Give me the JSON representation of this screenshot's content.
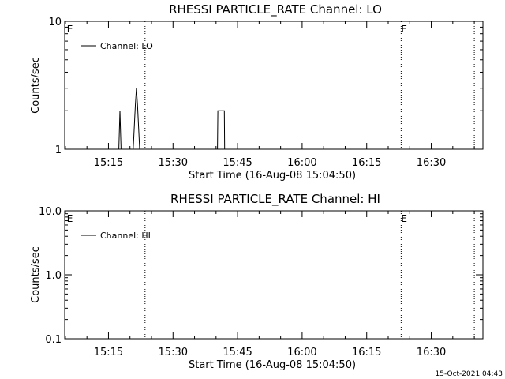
{
  "footer": {
    "timestamp": "15-Oct-2021 04:43"
  },
  "chart_data": [
    {
      "type": "line",
      "title": "RHESSI PARTICLE_RATE Channel: LO",
      "xlabel": "Start Time (16-Aug-08 15:04:50)",
      "ylabel": "Counts/sec",
      "xlim": [
        "15:04:50",
        "16:42:00"
      ],
      "yscale": "log",
      "ylim": [
        1,
        10
      ],
      "yticks": [
        {
          "value": 1,
          "label": "1"
        },
        {
          "value": 10,
          "label": "10"
        }
      ],
      "xticks": [
        "15:15",
        "15:30",
        "15:45",
        "16:00",
        "16:15",
        "16:30"
      ],
      "legend": {
        "position": "top-left",
        "label": "Channel: LO"
      },
      "markers": [
        {
          "time": "15:05:20",
          "label": "E"
        },
        {
          "time": "16:23:00",
          "label": "E"
        }
      ],
      "vlines": [
        "15:23:30",
        "16:23:00",
        "16:40:00"
      ],
      "series": [
        {
          "points": [
            [
              "15:17:25",
              1
            ],
            [
              "15:17:40",
              2
            ],
            [
              "15:17:55",
              1
            ],
            [
              "15:20:45",
              1
            ],
            [
              "15:21:15",
              2.2
            ],
            [
              "15:21:30",
              3
            ],
            [
              "15:21:45",
              2.2
            ],
            [
              "15:22:15",
              1
            ],
            [
              "15:40:20",
              1
            ],
            [
              "15:40:25",
              2
            ],
            [
              "15:41:55",
              2
            ],
            [
              "15:42:00",
              1
            ]
          ]
        }
      ]
    },
    {
      "type": "line",
      "title": "RHESSI PARTICLE_RATE Channel: HI",
      "xlabel": "Start Time (16-Aug-08 15:04:50)",
      "ylabel": "Counts/sec",
      "xlim": [
        "15:04:50",
        "16:42:00"
      ],
      "yscale": "log",
      "ylim": [
        0.1,
        10
      ],
      "yticks": [
        {
          "value": 0.1,
          "label": "0.1"
        },
        {
          "value": 1,
          "label": "1.0"
        },
        {
          "value": 10,
          "label": "10.0"
        }
      ],
      "xticks": [
        "15:15",
        "15:30",
        "15:45",
        "16:00",
        "16:15",
        "16:30"
      ],
      "legend": {
        "position": "top-left",
        "label": "Channel: HI"
      },
      "markers": [
        {
          "time": "15:05:20",
          "label": "E"
        },
        {
          "time": "16:23:00",
          "label": "E"
        }
      ],
      "vlines": [
        "15:23:30",
        "16:23:00",
        "16:40:00"
      ],
      "series": [
        {
          "points": []
        }
      ]
    }
  ]
}
